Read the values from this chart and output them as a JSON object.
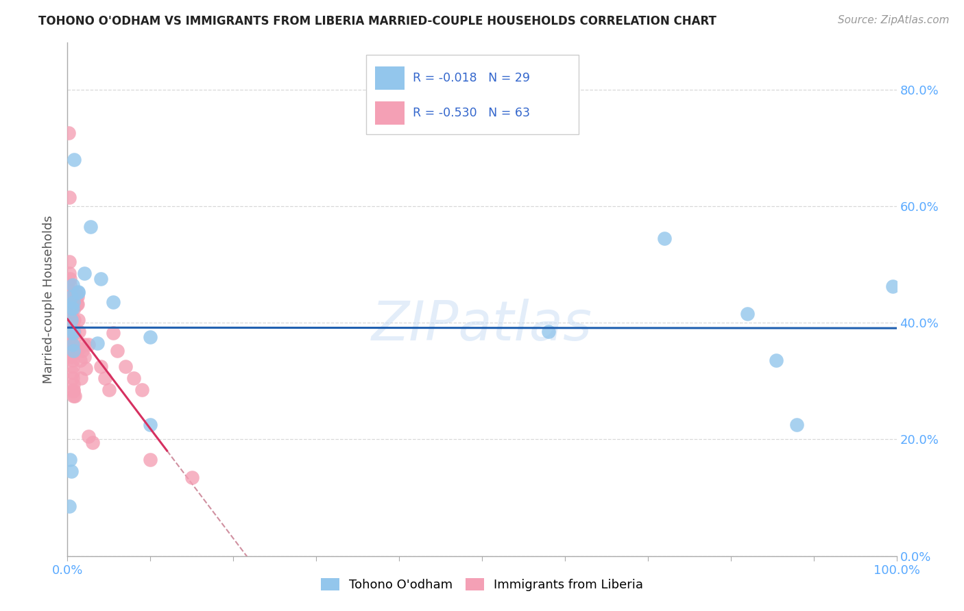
{
  "title": "TOHONO O'ODHAM VS IMMIGRANTS FROM LIBERIA MARRIED-COUPLE HOUSEHOLDS CORRELATION CHART",
  "source": "Source: ZipAtlas.com",
  "ylabel": "Married-couple Households",
  "xlim": [
    0,
    1.0
  ],
  "ylim": [
    0,
    0.88
  ],
  "ytick_vals": [
    0.0,
    0.2,
    0.4,
    0.6,
    0.8
  ],
  "xtick_vals": [
    0.0,
    0.1,
    0.2,
    0.3,
    0.4,
    0.5,
    0.6,
    0.7,
    0.8,
    0.9,
    1.0
  ],
  "watermark": "ZIPatlas",
  "legend_blue_r": "-0.018",
  "legend_blue_n": "29",
  "legend_pink_r": "-0.530",
  "legend_pink_n": "63",
  "blue_color": "#93C6EC",
  "pink_color": "#F4A0B5",
  "trendline_blue_color": "#2060b0",
  "trendline_pink_color": "#d63060",
  "trendline_ext_color": "#d090a0",
  "tick_color": "#5aaaff",
  "grid_color": "#d8d8d8",
  "blue_dots": [
    [
      0.008,
      0.68
    ],
    [
      0.003,
      0.165
    ],
    [
      0.005,
      0.145
    ],
    [
      0.002,
      0.085
    ],
    [
      0.005,
      0.425
    ],
    [
      0.005,
      0.405
    ],
    [
      0.006,
      0.425
    ],
    [
      0.007,
      0.435
    ],
    [
      0.005,
      0.445
    ],
    [
      0.006,
      0.465
    ],
    [
      0.007,
      0.385
    ],
    [
      0.006,
      0.382
    ],
    [
      0.006,
      0.362
    ],
    [
      0.007,
      0.352
    ],
    [
      0.013,
      0.452
    ],
    [
      0.013,
      0.453
    ],
    [
      0.02,
      0.485
    ],
    [
      0.028,
      0.565
    ],
    [
      0.036,
      0.365
    ],
    [
      0.04,
      0.475
    ],
    [
      0.055,
      0.435
    ],
    [
      0.1,
      0.375
    ],
    [
      0.1,
      0.225
    ],
    [
      0.58,
      0.385
    ],
    [
      0.72,
      0.545
    ],
    [
      0.82,
      0.415
    ],
    [
      0.855,
      0.335
    ],
    [
      0.88,
      0.225
    ],
    [
      0.995,
      0.462
    ]
  ],
  "pink_dots": [
    [
      0.001,
      0.725
    ],
    [
      0.002,
      0.615
    ],
    [
      0.002,
      0.505
    ],
    [
      0.002,
      0.485
    ],
    [
      0.003,
      0.475
    ],
    [
      0.003,
      0.465
    ],
    [
      0.003,
      0.455
    ],
    [
      0.003,
      0.445
    ],
    [
      0.003,
      0.435
    ],
    [
      0.003,
      0.435
    ],
    [
      0.003,
      0.425
    ],
    [
      0.004,
      0.425
    ],
    [
      0.004,
      0.415
    ],
    [
      0.004,
      0.405
    ],
    [
      0.004,
      0.402
    ],
    [
      0.004,
      0.395
    ],
    [
      0.004,
      0.385
    ],
    [
      0.004,
      0.382
    ],
    [
      0.005,
      0.375
    ],
    [
      0.005,
      0.362
    ],
    [
      0.005,
      0.355
    ],
    [
      0.005,
      0.345
    ],
    [
      0.005,
      0.342
    ],
    [
      0.006,
      0.335
    ],
    [
      0.006,
      0.325
    ],
    [
      0.006,
      0.315
    ],
    [
      0.006,
      0.305
    ],
    [
      0.007,
      0.295
    ],
    [
      0.007,
      0.285
    ],
    [
      0.007,
      0.283
    ],
    [
      0.007,
      0.275
    ],
    [
      0.008,
      0.425
    ],
    [
      0.008,
      0.405
    ],
    [
      0.008,
      0.385
    ],
    [
      0.009,
      0.375
    ],
    [
      0.009,
      0.275
    ],
    [
      0.01,
      0.452
    ],
    [
      0.01,
      0.442
    ],
    [
      0.011,
      0.432
    ],
    [
      0.012,
      0.445
    ],
    [
      0.012,
      0.432
    ],
    [
      0.013,
      0.405
    ],
    [
      0.014,
      0.385
    ],
    [
      0.014,
      0.355
    ],
    [
      0.015,
      0.335
    ],
    [
      0.016,
      0.305
    ],
    [
      0.018,
      0.352
    ],
    [
      0.02,
      0.362
    ],
    [
      0.02,
      0.342
    ],
    [
      0.022,
      0.322
    ],
    [
      0.025,
      0.362
    ],
    [
      0.025,
      0.205
    ],
    [
      0.03,
      0.195
    ],
    [
      0.04,
      0.325
    ],
    [
      0.045,
      0.305
    ],
    [
      0.05,
      0.285
    ],
    [
      0.055,
      0.382
    ],
    [
      0.06,
      0.352
    ],
    [
      0.07,
      0.325
    ],
    [
      0.08,
      0.305
    ],
    [
      0.09,
      0.285
    ],
    [
      0.1,
      0.165
    ],
    [
      0.15,
      0.135
    ]
  ],
  "pink_trendline_solid_end": 0.12,
  "pink_trendline_dash_end": 0.38
}
